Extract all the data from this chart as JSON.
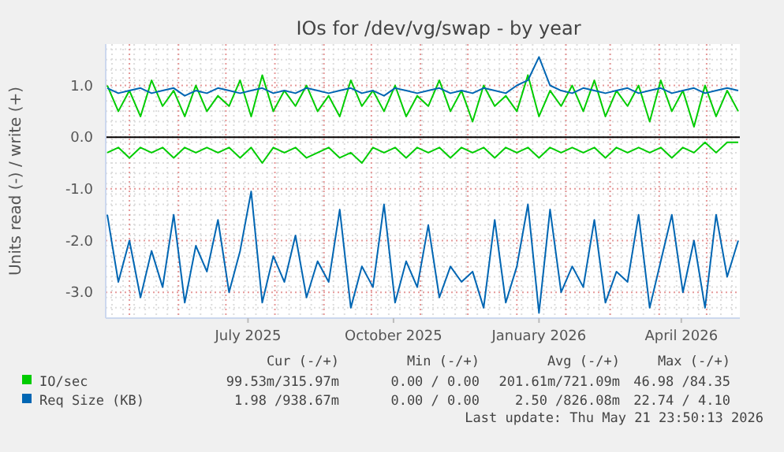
{
  "chart_data": {
    "type": "line",
    "title": "IOs for /dev/vg/swap - by year",
    "ylabel": "Units read (-) / write (+)",
    "x": [
      "2025-04-17",
      "2025-04-24",
      "2025-05-01",
      "2025-05-08",
      "2025-05-15",
      "2025-05-22",
      "2025-05-29",
      "2025-06-05",
      "2025-06-12",
      "2025-06-19",
      "2025-06-26",
      "2025-07-03",
      "2025-07-10",
      "2025-07-17",
      "2025-07-24",
      "2025-07-31",
      "2025-08-07",
      "2025-08-14",
      "2025-08-21",
      "2025-08-28",
      "2025-09-04",
      "2025-09-11",
      "2025-09-18",
      "2025-09-25",
      "2025-10-02",
      "2025-10-09",
      "2025-10-16",
      "2025-10-23",
      "2025-10-30",
      "2025-11-06",
      "2025-11-13",
      "2025-11-20",
      "2025-11-27",
      "2025-12-04",
      "2025-12-11",
      "2025-12-18",
      "2025-12-25",
      "2026-01-01",
      "2026-01-08",
      "2026-01-15",
      "2026-01-22",
      "2026-01-29",
      "2026-02-05",
      "2026-02-12",
      "2026-02-19",
      "2026-02-26",
      "2026-03-05",
      "2026-03-12",
      "2026-03-19",
      "2026-03-26",
      "2026-04-02",
      "2026-04-09",
      "2026-04-16",
      "2026-04-23",
      "2026-04-30",
      "2026-05-07",
      "2026-05-14",
      "2026-05-21"
    ],
    "series": [
      {
        "color": "#00cc00",
        "values": [
          -0.3,
          -0.2,
          -0.4,
          -0.2,
          -0.3,
          -0.2,
          -0.4,
          -0.2,
          -0.3,
          -0.2,
          -0.3,
          -0.2,
          -0.4,
          -0.2,
          -0.5,
          -0.2,
          -0.3,
          -0.2,
          -0.4,
          -0.3,
          -0.2,
          -0.4,
          -0.3,
          -0.5,
          -0.2,
          -0.3,
          -0.2,
          -0.4,
          -0.2,
          -0.3,
          -0.2,
          -0.4,
          -0.2,
          -0.3,
          -0.2,
          -0.4,
          -0.2,
          -0.3,
          -0.2,
          -0.4,
          -0.2,
          -0.3,
          -0.2,
          -0.3,
          -0.2,
          -0.4,
          -0.2,
          -0.3,
          -0.2,
          -0.3,
          -0.2,
          -0.4,
          -0.2,
          -0.3,
          -0.1,
          -0.3,
          -0.1,
          -0.1
        ]
      },
      {
        "name": "IO/sec",
        "color": "#00cc00",
        "values": [
          1.0,
          0.5,
          0.9,
          0.4,
          1.1,
          0.6,
          0.9,
          0.4,
          1.0,
          0.5,
          0.8,
          0.6,
          1.1,
          0.4,
          1.2,
          0.5,
          0.9,
          0.6,
          1.0,
          0.5,
          0.8,
          0.4,
          1.1,
          0.6,
          0.9,
          0.5,
          1.0,
          0.4,
          0.8,
          0.6,
          1.1,
          0.5,
          0.9,
          0.3,
          1.0,
          0.6,
          0.8,
          0.5,
          1.2,
          0.4,
          0.9,
          0.6,
          1.0,
          0.5,
          1.1,
          0.4,
          0.9,
          0.6,
          1.0,
          0.3,
          1.1,
          0.5,
          0.9,
          0.2,
          1.0,
          0.4,
          0.9,
          0.5
        ]
      },
      {
        "color": "#0066b3",
        "values": [
          -1.5,
          -2.8,
          -2.0,
          -3.1,
          -2.2,
          -2.9,
          -1.5,
          -3.2,
          -2.1,
          -2.6,
          -1.6,
          -3.0,
          -2.2,
          -1.05,
          -3.2,
          -2.3,
          -2.8,
          -1.9,
          -3.1,
          -2.4,
          -2.8,
          -1.4,
          -3.3,
          -2.5,
          -2.9,
          -1.3,
          -3.2,
          -2.4,
          -2.9,
          -1.7,
          -3.1,
          -2.5,
          -2.8,
          -2.6,
          -3.3,
          -1.6,
          -3.2,
          -2.5,
          -1.3,
          -3.4,
          -1.4,
          -3.0,
          -2.5,
          -2.9,
          -1.6,
          -3.2,
          -2.6,
          -2.8,
          -1.5,
          -3.3,
          -2.4,
          -1.5,
          -3.0,
          -2.0,
          -3.3,
          -1.5,
          -2.7,
          -2.0
        ]
      },
      {
        "name": "Req Size (KB)",
        "color": "#0066b3",
        "values": [
          0.95,
          0.85,
          0.9,
          0.95,
          0.85,
          0.9,
          0.95,
          0.8,
          0.9,
          0.85,
          0.95,
          0.9,
          0.85,
          0.9,
          0.95,
          0.85,
          0.9,
          0.85,
          0.95,
          0.9,
          0.85,
          0.9,
          0.95,
          0.85,
          0.9,
          0.8,
          0.95,
          0.9,
          0.85,
          0.9,
          0.95,
          0.85,
          0.9,
          0.85,
          0.95,
          0.9,
          0.85,
          1.0,
          1.1,
          1.55,
          1.0,
          0.9,
          0.85,
          0.95,
          0.9,
          0.85,
          0.9,
          0.95,
          0.85,
          0.9,
          0.95,
          0.85,
          0.9,
          0.95,
          0.85,
          0.9,
          0.95,
          0.9
        ]
      }
    ],
    "xlim": [
      "2025-04-16",
      "2026-05-22"
    ],
    "xticks": [
      {
        "value": "2025-07-15",
        "label": "July 2025"
      },
      {
        "value": "2025-10-15",
        "label": "October 2025"
      },
      {
        "value": "2026-01-15",
        "label": "January 2026"
      },
      {
        "value": "2026-04-15",
        "label": "April 2026"
      }
    ],
    "ylim": [
      -3.5,
      1.8
    ],
    "yticks": [
      {
        "value": 1,
        "label": "1.0"
      },
      {
        "value": 0,
        "label": "0.0"
      },
      {
        "value": -1,
        "label": "-1.0"
      },
      {
        "value": -2,
        "label": "-2.0"
      },
      {
        "value": -3,
        "label": "-3.0"
      }
    ],
    "ref_lines": [
      {
        "axis": "y",
        "value": 0,
        "color": "#000000"
      }
    ],
    "grid": true,
    "legend": "bottom left",
    "marker": "none",
    "line_style": "solid",
    "annotations": [
      "Cur (-/+)",
      "Min (-/+)",
      "Avg (-/+)",
      "Max (-/+)",
      "99.53m/315.97m",
      "0.00 / 0.00",
      "201.61m/721.09m",
      "46.98 /84.35",
      "1.98 /938.67m",
      "0.00 / 0.00",
      "2.50 /826.08m",
      "22.74 / 4.10",
      "Last update: Thu May 21 23:50:13 2026"
    ]
  }
}
